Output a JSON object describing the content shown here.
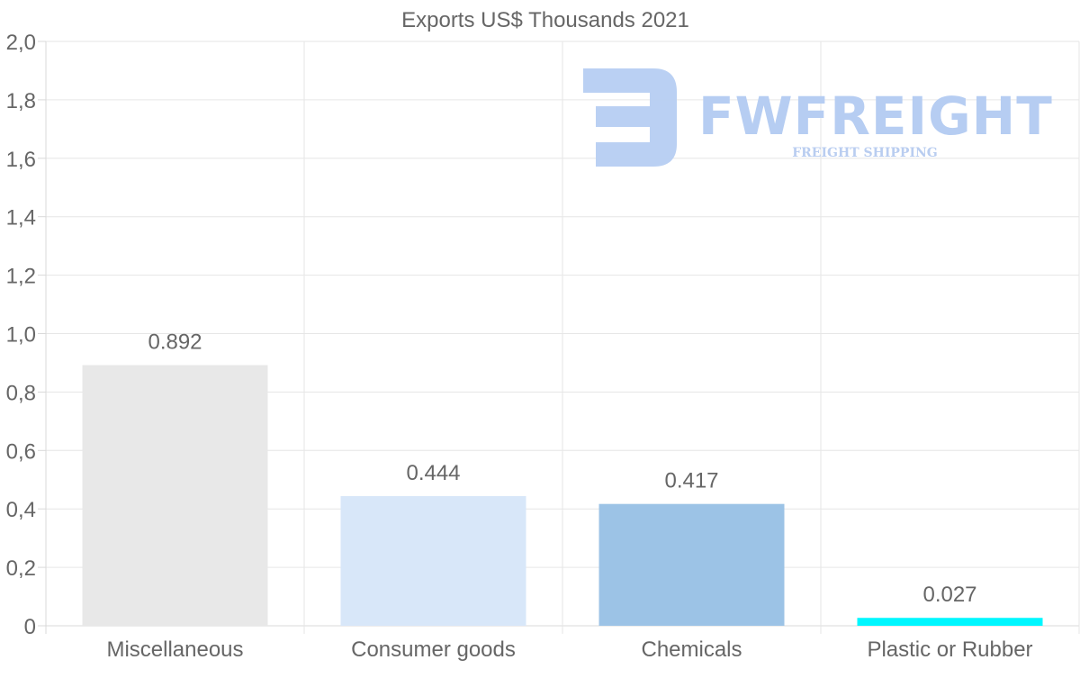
{
  "chart_data": {
    "type": "bar",
    "title": "Exports US$ Thousands 2021",
    "categories": [
      "Miscellaneous",
      "Consumer goods",
      "Chemicals",
      "Plastic or Rubber"
    ],
    "values": [
      0.892,
      0.444,
      0.417,
      0.027
    ],
    "value_labels": [
      "0.892",
      "0.444",
      "0.417",
      "0.027"
    ],
    "colors": [
      "#e8e8e8",
      "#d8e7f9",
      "#9cc3e6",
      "#00f7ff"
    ],
    "ylim": [
      0,
      2.0
    ],
    "yticks": [
      0,
      0.2,
      0.4,
      0.6,
      0.8,
      1.0,
      1.2,
      1.4,
      1.6,
      1.8,
      2.0
    ],
    "ytick_labels": [
      "0",
      "0,2",
      "0,4",
      "0,6",
      "0,8",
      "1,0",
      "1,2",
      "1,4",
      "1,6",
      "1,8",
      "2,0"
    ],
    "xlabel": "",
    "ylabel": "",
    "grid": true
  },
  "watermark": {
    "brand": "FWFREIGHT",
    "tagline": "FREIGHT SHIPPING",
    "color": "#b6cdf2"
  }
}
